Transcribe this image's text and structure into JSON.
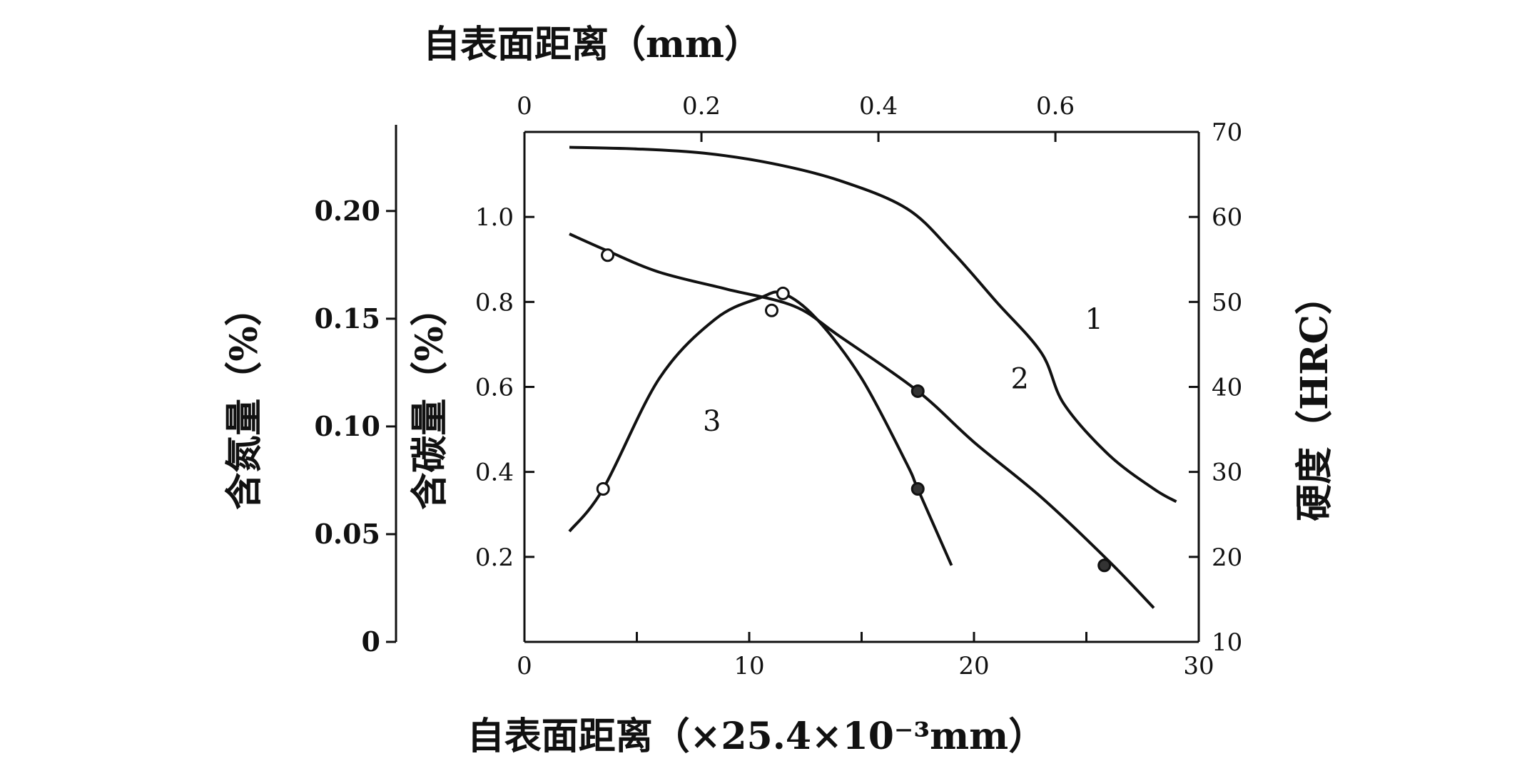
{
  "chart_data": {
    "type": "line",
    "top_axis": {
      "label": "自表面距离（mm）",
      "ticks": [
        "0",
        "0.2",
        "0.4",
        "0.6"
      ],
      "values": [
        0,
        0.2,
        0.4,
        0.6
      ]
    },
    "bottom_axis": {
      "label": "自表面距离（×25.4×10⁻³mm）",
      "ticks": [
        "0",
        "10",
        "",
        "20",
        "30"
      ],
      "values": [
        0,
        10,
        15,
        20,
        30
      ],
      "xlim": [
        0,
        30
      ]
    },
    "nitrogen_axis": {
      "label": "含氮量（%）",
      "ticks": [
        "0",
        "0.05",
        "0.10",
        "0.15",
        "0.20"
      ],
      "values": [
        0,
        0.05,
        0.1,
        0.15,
        0.2
      ],
      "ylim": [
        0,
        0.24
      ]
    },
    "carbon_axis": {
      "label": "含碳量（%）",
      "ticks": [
        "0.2",
        "0.4",
        "0.6",
        "0.8",
        "1.0"
      ],
      "values": [
        0.2,
        0.4,
        0.6,
        0.8,
        1.0
      ],
      "ylim": [
        0,
        1.2
      ]
    },
    "hardness_axis": {
      "label": "硬度（HRC）",
      "ticks": [
        "10",
        "20",
        "30",
        "40",
        "50",
        "60",
        "70"
      ],
      "values": [
        10,
        20,
        30,
        40,
        50,
        60,
        70
      ],
      "ylim": [
        10,
        70
      ]
    },
    "series": [
      {
        "name": "1",
        "axis": "hardness",
        "x": [
          2,
          5,
          8,
          11,
          14,
          17,
          19,
          21,
          23,
          24,
          26,
          28,
          29
        ],
        "y": [
          68.2,
          68,
          67.5,
          66.3,
          64.3,
          61,
          56,
          50,
          44,
          38,
          32,
          28,
          26.5
        ],
        "markers": [],
        "label_x": 24.3,
        "label_y": 48
      },
      {
        "name": "2",
        "axis": "carbon",
        "x": [
          2,
          3.7,
          6,
          9,
          12,
          14,
          17.5,
          20,
          23,
          26,
          28
        ],
        "y": [
          0.96,
          0.92,
          0.87,
          0.83,
          0.79,
          0.72,
          0.59,
          0.47,
          0.34,
          0.19,
          0.08
        ],
        "markers": [
          {
            "x": 3.7,
            "y": 0.91,
            "style": "open"
          },
          {
            "x": 17.5,
            "y": 0.59,
            "style": "solid"
          },
          {
            "x": 25.8,
            "y": 0.18,
            "style": "solid"
          }
        ],
        "label_x": 21,
        "label_y": 0.62
      },
      {
        "name": "3",
        "axis": "carbon",
        "x": [
          2,
          3.5,
          6,
          8.5,
          10.5,
          11.5,
          13,
          15,
          17,
          17.5,
          19
        ],
        "y": [
          0.26,
          0.36,
          0.62,
          0.76,
          0.81,
          0.82,
          0.76,
          0.62,
          0.42,
          0.36,
          0.18
        ],
        "markers": [
          {
            "x": 3.5,
            "y": 0.36,
            "style": "open"
          },
          {
            "x": 11,
            "y": 0.78,
            "style": "open"
          },
          {
            "x": 11.5,
            "y": 0.82,
            "style": "open"
          },
          {
            "x": 17.5,
            "y": 0.36,
            "style": "solid"
          }
        ],
        "label_x": 7.3,
        "label_y": 0.52
      }
    ]
  }
}
